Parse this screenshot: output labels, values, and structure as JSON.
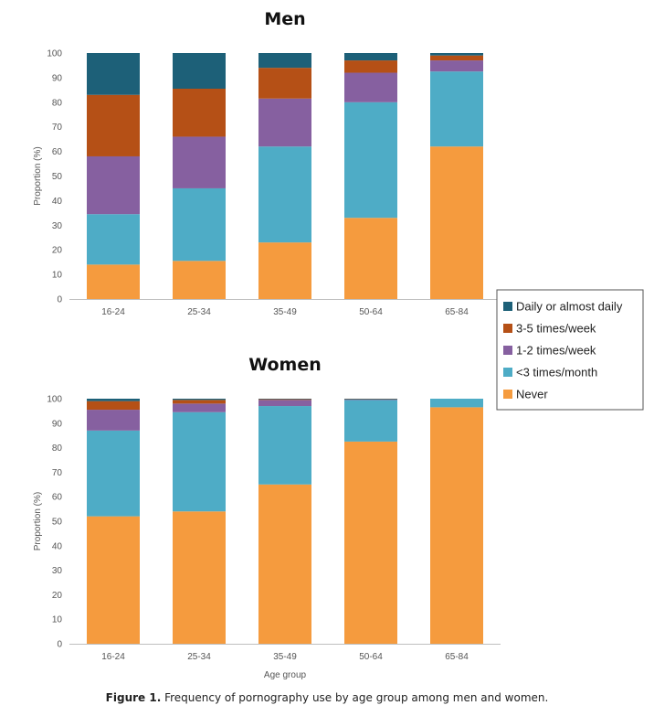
{
  "caption": {
    "label": "Figure 1.",
    "text": "Frequency of pornography use by age group among men and women."
  },
  "colors": {
    "Daily or almost daily": "#1d6078",
    "3-5 times/week": "#b55016",
    "1-2 times/week": "#8660a0",
    "<3 times/month": "#4eacc6",
    "Never": "#f59b3e",
    "gridline": "#d9d9d9",
    "axis": "#bfbfbf"
  },
  "legend": {
    "entries": [
      "Daily or almost daily",
      "3-5 times/week",
      "1-2 times/week",
      "<3 times/month",
      "Never"
    ]
  },
  "chart_data": [
    {
      "type": "bar",
      "stacked": true,
      "title": "Men",
      "ylabel": "Proportion (%)",
      "xlabel": "",
      "ylim": [
        0,
        100
      ],
      "yticks": [
        0,
        10,
        20,
        30,
        40,
        50,
        60,
        70,
        80,
        90,
        100
      ],
      "grid": false,
      "legend_position": "right",
      "categories": [
        "16-24",
        "25-34",
        "35-49",
        "50-64",
        "65-84"
      ],
      "series": [
        {
          "name": "Never",
          "values": [
            14,
            15.5,
            23,
            33,
            62
          ]
        },
        {
          "name": "<3 times/month",
          "values": [
            20.5,
            29.5,
            39,
            47,
            30.5
          ]
        },
        {
          "name": "1-2 times/week",
          "values": [
            23.5,
            21,
            19.5,
            12,
            4.5
          ]
        },
        {
          "name": "3-5 times/week",
          "values": [
            25,
            19.5,
            12.5,
            5,
            2
          ]
        },
        {
          "name": "Daily or almost daily",
          "values": [
            17,
            14.5,
            6,
            3,
            1
          ]
        }
      ]
    },
    {
      "type": "bar",
      "stacked": true,
      "title": "Women",
      "ylabel": "Proportion (%)",
      "xlabel": "Age group",
      "ylim": [
        0,
        100
      ],
      "yticks": [
        0,
        10,
        20,
        30,
        40,
        50,
        60,
        70,
        80,
        90,
        100
      ],
      "grid": false,
      "legend_position": "right",
      "categories": [
        "16-24",
        "25-34",
        "35-49",
        "50-64",
        "65-84"
      ],
      "series": [
        {
          "name": "Never",
          "values": [
            52,
            54,
            65,
            82.5,
            96.5
          ]
        },
        {
          "name": "<3 times/month",
          "values": [
            35,
            40.5,
            32,
            17,
            3.5
          ]
        },
        {
          "name": "1-2 times/week",
          "values": [
            8.5,
            3.5,
            2.5,
            0.2,
            0
          ]
        },
        {
          "name": "3-5 times/week",
          "values": [
            3.5,
            1.5,
            0.3,
            0.2,
            0
          ]
        },
        {
          "name": "Daily or almost daily",
          "values": [
            1,
            0.5,
            0.2,
            0.1,
            0
          ]
        }
      ]
    }
  ]
}
